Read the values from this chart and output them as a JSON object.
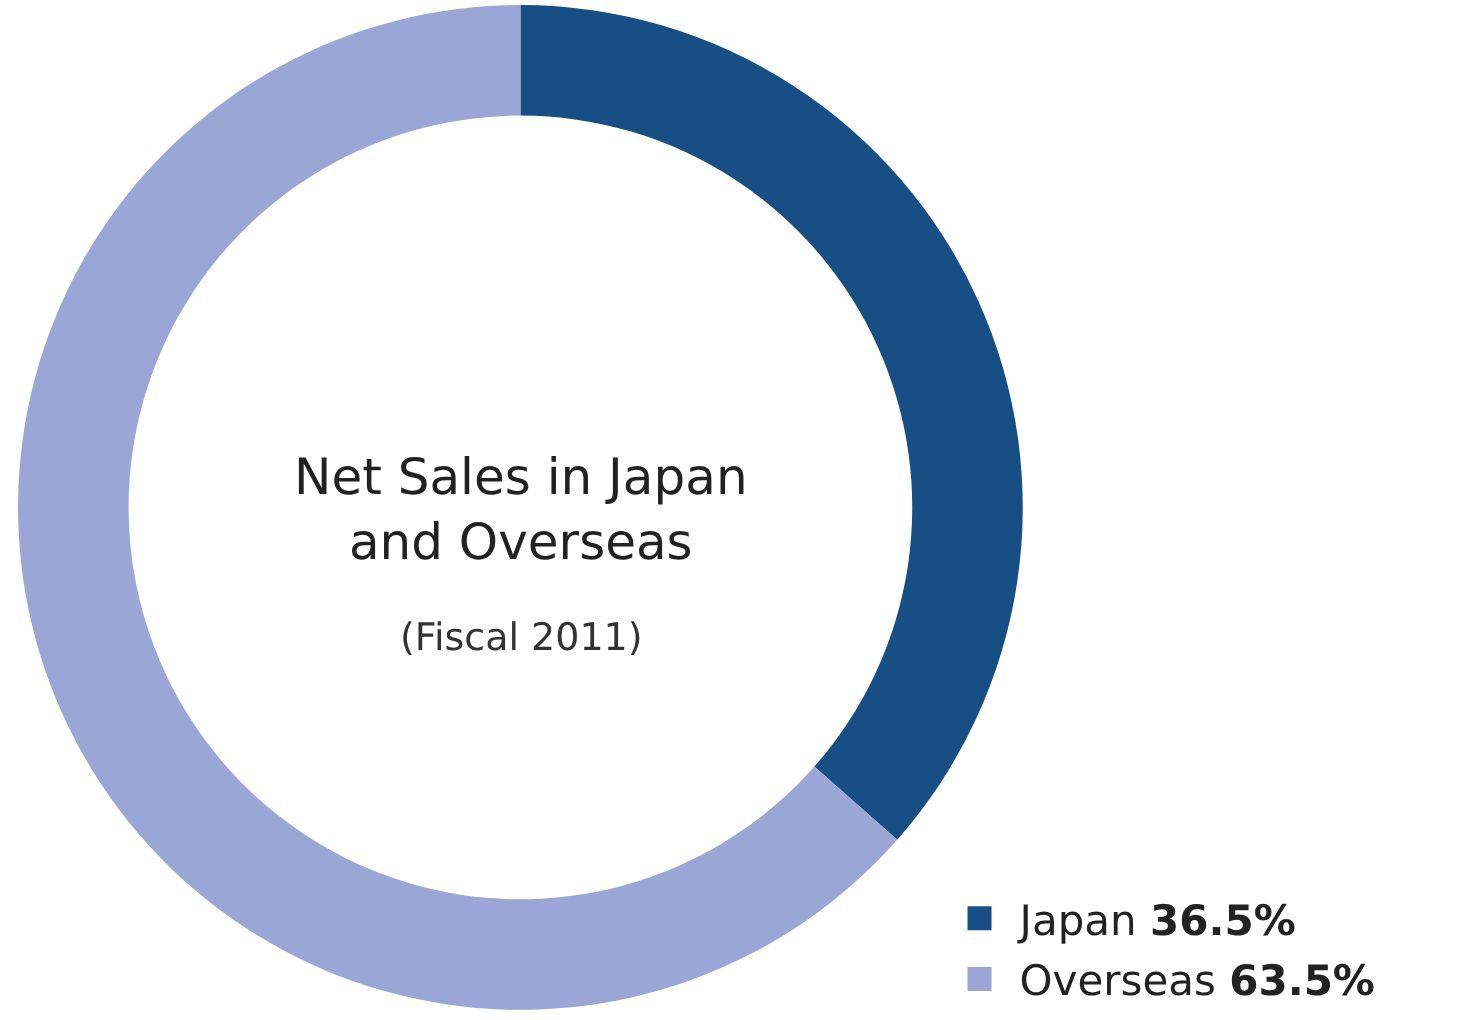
{
  "chart_data": {
    "type": "donut",
    "title": "Net Sales in Japan and Overseas",
    "subtitle": "(Fiscal 2011)",
    "categories": [
      "Japan",
      "Overseas"
    ],
    "values": [
      36.5,
      63.5
    ],
    "colors": [
      "#174f85",
      "#9aa6d5"
    ],
    "value_labels": [
      "36.5%",
      "63.5%"
    ],
    "legend": "bottom right"
  }
}
